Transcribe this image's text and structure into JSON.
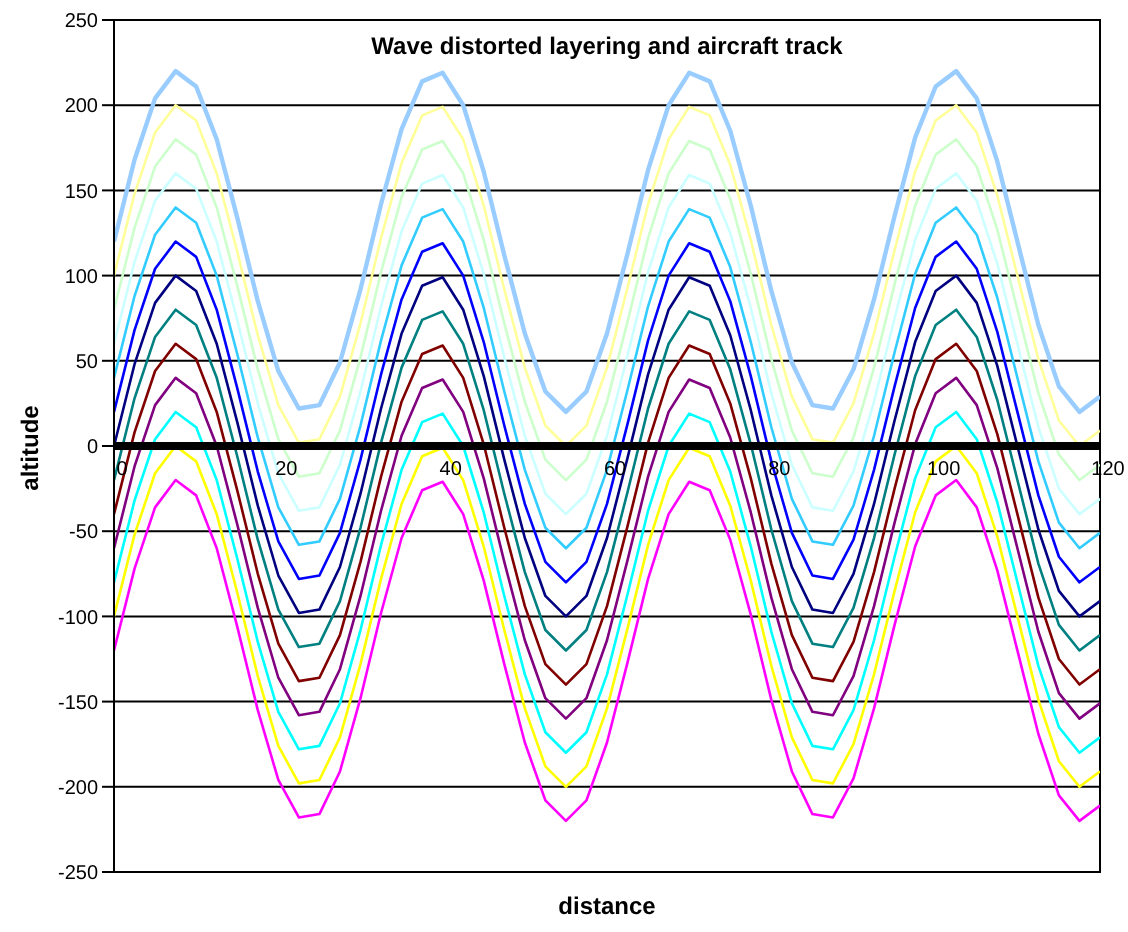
{
  "chart_data": {
    "type": "line",
    "title": "Wave distorted layering and aircraft track",
    "xlabel": "distance",
    "ylabel": "altitude",
    "x": [
      0,
      2.5,
      5,
      7.5,
      10,
      12.5,
      15,
      17.5,
      20,
      22.5,
      25,
      27.5,
      30,
      32.5,
      35,
      37.5,
      40,
      42.5,
      45,
      47.5,
      50,
      52.5,
      55,
      57.5,
      60,
      62.5,
      65,
      67.5,
      70,
      72.5,
      75,
      77.5,
      80,
      82.5,
      85,
      87.5,
      90,
      92.5,
      95,
      97.5,
      100,
      102.5,
      105,
      107.5,
      110,
      112.5,
      115,
      117.5,
      120
    ],
    "series": [
      {
        "color": "#99ccff",
        "values": [
          120,
          168,
          204,
          220,
          211,
          180,
          134,
          85,
          44,
          22,
          24,
          49,
          92,
          142,
          186,
          214,
          219,
          200,
          161,
          112,
          66,
          32,
          20,
          32,
          66,
          113,
          162,
          200,
          219,
          214,
          185,
          141,
          91,
          49,
          24,
          22,
          45,
          86,
          135,
          181,
          211,
          220,
          204,
          167,
          119,
          71,
          35,
          20,
          29
        ]
      },
      {
        "color": "#ffff99",
        "values": [
          100,
          148,
          184,
          200,
          191,
          160,
          114,
          65,
          24,
          2,
          4,
          29,
          72,
          122,
          166,
          194,
          199,
          180,
          141,
          92,
          46,
          12,
          0,
          12,
          46,
          93,
          142,
          180,
          199,
          194,
          165,
          121,
          71,
          29,
          4,
          2,
          25,
          66,
          115,
          161,
          191,
          200,
          184,
          147,
          99,
          51,
          15,
          0,
          9
        ]
      },
      {
        "color": "#ccffcc",
        "values": [
          80,
          128,
          164,
          180,
          171,
          140,
          94,
          45,
          4,
          -18,
          -16,
          9,
          52,
          102,
          146,
          174,
          179,
          160,
          121,
          72,
          26,
          -8,
          -20,
          -8,
          26,
          73,
          122,
          160,
          179,
          174,
          145,
          101,
          51,
          9,
          -16,
          -18,
          5,
          46,
          95,
          141,
          171,
          180,
          164,
          127,
          79,
          31,
          -5,
          -20,
          -11
        ]
      },
      {
        "color": "#ccffff",
        "values": [
          60,
          108,
          144,
          160,
          151,
          120,
          74,
          25,
          -16,
          -38,
          -36,
          -11,
          32,
          82,
          126,
          154,
          159,
          140,
          101,
          52,
          6,
          -28,
          -40,
          -28,
          6,
          53,
          102,
          140,
          159,
          154,
          125,
          81,
          31,
          -11,
          -36,
          -38,
          -15,
          26,
          75,
          121,
          151,
          160,
          144,
          107,
          59,
          11,
          -25,
          -40,
          -31
        ]
      },
      {
        "color": "#33ccff",
        "values": [
          40,
          88,
          124,
          140,
          131,
          100,
          54,
          5,
          -36,
          -58,
          -56,
          -31,
          12,
          62,
          106,
          134,
          139,
          120,
          81,
          32,
          -14,
          -48,
          -60,
          -48,
          -14,
          33,
          82,
          120,
          139,
          134,
          105,
          61,
          11,
          -31,
          -56,
          -58,
          -35,
          6,
          55,
          101,
          131,
          140,
          124,
          87,
          39,
          -9,
          -45,
          -60,
          -51
        ]
      },
      {
        "color": "#0000ff",
        "values": [
          20,
          68,
          104,
          120,
          111,
          80,
          34,
          -15,
          -56,
          -78,
          -76,
          -51,
          -8,
          42,
          86,
          114,
          119,
          100,
          61,
          12,
          -34,
          -68,
          -80,
          -68,
          -34,
          13,
          62,
          100,
          119,
          114,
          85,
          41,
          -9,
          -51,
          -76,
          -78,
          -55,
          -14,
          35,
          81,
          111,
          120,
          104,
          67,
          19,
          -29,
          -65,
          -80,
          -71
        ]
      },
      {
        "color": "#000080",
        "values": [
          0,
          48,
          84,
          100,
          91,
          60,
          14,
          -35,
          -76,
          -98,
          -96,
          -71,
          -28,
          22,
          66,
          94,
          99,
          80,
          41,
          -8,
          -54,
          -88,
          -100,
          -88,
          -54,
          -7,
          42,
          80,
          99,
          94,
          65,
          21,
          -29,
          -71,
          -96,
          -98,
          -75,
          -34,
          15,
          61,
          91,
          100,
          84,
          47,
          -1,
          -49,
          -85,
          -100,
          -91
        ]
      },
      {
        "color": "#008080",
        "values": [
          -20,
          28,
          64,
          80,
          71,
          40,
          -6,
          -55,
          -96,
          -118,
          -116,
          -91,
          -48,
          2,
          46,
          74,
          79,
          60,
          21,
          -28,
          -74,
          -108,
          -120,
          -108,
          -74,
          -27,
          22,
          60,
          79,
          74,
          45,
          1,
          -49,
          -91,
          -116,
          -118,
          -95,
          -54,
          -5,
          41,
          71,
          80,
          64,
          27,
          -21,
          -69,
          -105,
          -120,
          -111
        ]
      },
      {
        "color": "#800000",
        "values": [
          -40,
          8,
          44,
          60,
          51,
          20,
          -26,
          -75,
          -116,
          -138,
          -136,
          -111,
          -68,
          -18,
          26,
          54,
          59,
          40,
          1,
          -48,
          -94,
          -128,
          -140,
          -128,
          -94,
          -47,
          2,
          40,
          59,
          54,
          25,
          -19,
          -69,
          -111,
          -136,
          -138,
          -115,
          -74,
          -25,
          21,
          51,
          60,
          44,
          7,
          -41,
          -89,
          -125,
          -140,
          -131
        ]
      },
      {
        "color": "#800080",
        "values": [
          -60,
          -12,
          24,
          40,
          31,
          0,
          -46,
          -95,
          -136,
          -158,
          -156,
          -131,
          -88,
          -38,
          6,
          34,
          39,
          20,
          -19,
          -68,
          -114,
          -148,
          -160,
          -148,
          -114,
          -67,
          -18,
          20,
          39,
          34,
          5,
          -39,
          -89,
          -131,
          -156,
          -158,
          -135,
          -94,
          -45,
          1,
          31,
          40,
          24,
          -13,
          -61,
          -109,
          -145,
          -160,
          -151
        ]
      },
      {
        "color": "#00ffff",
        "values": [
          -80,
          -32,
          4,
          20,
          11,
          -20,
          -66,
          -115,
          -156,
          -178,
          -176,
          -151,
          -108,
          -58,
          -14,
          14,
          19,
          0,
          -39,
          -88,
          -134,
          -168,
          -180,
          -168,
          -134,
          -87,
          -38,
          0,
          19,
          14,
          -15,
          -59,
          -109,
          -151,
          -176,
          -178,
          -155,
          -114,
          -65,
          -19,
          11,
          20,
          4,
          -33,
          -81,
          -129,
          -165,
          -180,
          -171
        ]
      },
      {
        "color": "#ffff00",
        "values": [
          -100,
          -52,
          -16,
          0,
          -9,
          -40,
          -86,
          -135,
          -176,
          -198,
          -196,
          -171,
          -128,
          -78,
          -34,
          -6,
          -1,
          -20,
          -59,
          -108,
          -154,
          -188,
          -200,
          -188,
          -154,
          -107,
          -58,
          -20,
          -1,
          -6,
          -35,
          -79,
          -129,
          -171,
          -196,
          -198,
          -175,
          -134,
          -85,
          -39,
          -9,
          0,
          -16,
          -53,
          -101,
          -149,
          -185,
          -200,
          -191
        ]
      },
      {
        "color": "#ff00ff",
        "values": [
          -120,
          -72,
          -36,
          -20,
          -29,
          -60,
          -106,
          -155,
          -196,
          -218,
          -216,
          -191,
          -148,
          -98,
          -54,
          -26,
          -21,
          -40,
          -79,
          -128,
          -174,
          -208,
          -220,
          -208,
          -174,
          -127,
          -78,
          -40,
          -21,
          -26,
          -55,
          -99,
          -149,
          -191,
          -216,
          -218,
          -195,
          -154,
          -105,
          -59,
          -29,
          -20,
          -36,
          -73,
          -121,
          -169,
          -205,
          -220,
          -211
        ]
      },
      {
        "color": "#000000",
        "x": [
          0,
          120
        ],
        "values": [
          0,
          0
        ]
      }
    ],
    "xlim": [
      0,
      120
    ],
    "xticks": [
      0,
      20,
      40,
      60,
      80,
      100,
      120
    ],
    "ylim": [
      -250,
      250
    ],
    "yticks": [
      -250,
      -200,
      -150,
      -100,
      -50,
      0,
      50,
      100,
      150,
      200,
      250
    ],
    "grid": "y"
  }
}
